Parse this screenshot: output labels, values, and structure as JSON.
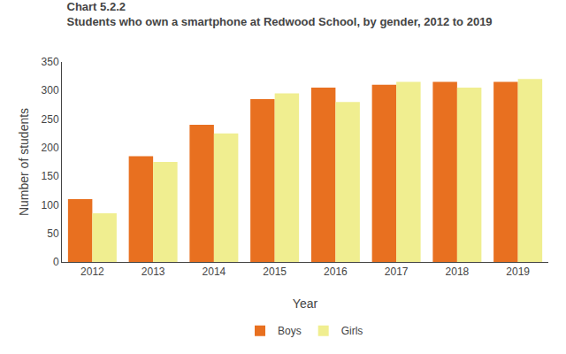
{
  "chart_data": {
    "type": "bar",
    "title": "Chart 5.2.2",
    "subtitle": "Students who own a smartphone at Redwood School, by gender, 2012 to 2019",
    "x_label": "Year",
    "y_label": "Number of students",
    "categories": [
      "2012",
      "2013",
      "2014",
      "2015",
      "2016",
      "2017",
      "2018",
      "2019"
    ],
    "series": [
      {
        "name": "Boys",
        "color": "#E87020",
        "values": [
          110,
          185,
          240,
          285,
          305,
          310,
          315,
          315
        ]
      },
      {
        "name": "Girls",
        "color": "#F0EE90",
        "values": [
          85,
          175,
          225,
          295,
          280,
          315,
          305,
          320
        ]
      }
    ],
    "ylim": [
      0,
      350
    ],
    "yticks": [
      0,
      50,
      100,
      150,
      200,
      250,
      300,
      350
    ],
    "grid": false,
    "legend": "bottom"
  }
}
